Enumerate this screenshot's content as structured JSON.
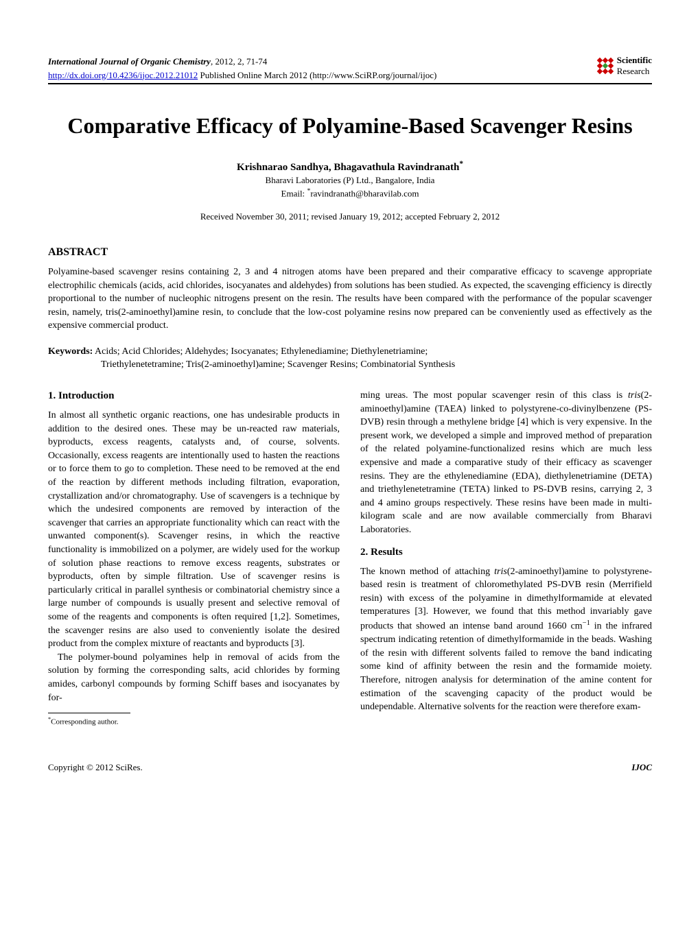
{
  "header": {
    "journal_name": "International Journal of Organic Chemistry",
    "journal_details": ", 2012, 2, 71-74",
    "doi_url": "http://dx.doi.org/10.4236/ijoc.2012.21012",
    "pub_info": " Published Online March 2012 (http://www.SciRP.org/journal/ijoc)",
    "logo": {
      "line1": "Scientific",
      "line2": "Research",
      "red": "#cc0000",
      "green": "#339933"
    }
  },
  "title": "Comparative Efficacy of Polyamine-Based Scavenger Resins",
  "authors": "Krishnarao Sandhya, Bhagavathula Ravindranath",
  "author_sup": "*",
  "affiliation": "Bharavi Laboratories (P) Ltd., Bangalore, India",
  "email_label": "Email: ",
  "email_sup": "*",
  "email": "ravindranath@bharavilab.com",
  "dates": "Received November 30, 2011; revised January 19, 2012; accepted February 2, 2012",
  "abstract": {
    "heading": "ABSTRACT",
    "text": "Polyamine-based scavenger resins containing 2, 3 and 4 nitrogen atoms have been prepared and their comparative efficacy to scavenge appropriate electrophilic chemicals (acids, acid chlorides, isocyanates and aldehydes) from solutions has been studied. As expected, the scavenging efficiency is directly proportional to the number of nucleophic nitrogens present on the resin. The results have been compared with the performance of the popular scavenger resin, namely, tris(2-aminoethyl)amine resin, to conclude that the low-cost polyamine resins now prepared can be conveniently used as effectively as the expensive commercial product."
  },
  "keywords": {
    "label": "Keywords:",
    "line1": " Acids; Acid Chlorides; Aldehydes; Isocyanates; Ethylenediamine; Diethylenetriamine;",
    "line2": "Triethylenetetramine; Tris(2-aminoethyl)amine; Scavenger Resins; Combinatorial Synthesis"
  },
  "sections": {
    "intro_heading": "1. Introduction",
    "intro_p1": "In almost all synthetic organic reactions, one has undesirable products in addition to the desired ones. These may be un-reacted raw materials, byproducts, excess reagents, catalysts and, of course, solvents. Occasionally, excess reagents are intentionally used to hasten the reactions or to force them to go to completion. These need to be removed at the end of the reaction by different methods including filtration, evaporation, crystallization and/or chromatography. Use of scavengers is a technique by which the undesired components are removed by interaction of the scavenger that carries an appropriate functionality which can react with the unwanted component(s). Scavenger resins, in which the reactive functionality is immobilized on a polymer, are widely used for the workup of solution phase reactions to remove excess reagents, substrates or byproducts, often by simple filtration. Use of scavenger resins is particularly critical in parallel synthesis or combinatorial chemistry since a large number of compounds is usually present and selective removal of some of the reagents and components is often required [1,2]. Sometimes, the scavenger resins are also used to conveniently isolate the desired product from the complex mixture of reactants and byproducts [3].",
    "intro_p2": "The polymer-bound polyamines help in removal of acids from the solution by forming the corresponding salts, acid chlorides by forming amides, carbonyl compounds by forming Schiff bases and isocyanates by for-",
    "col2_p1_a": "ming ureas. The most popular scavenger resin of this class is ",
    "col2_p1_tris": "tris",
    "col2_p1_b": "(2-aminoethyl)amine (TAEA) linked to polystyrene-co-divinylbenzene (PS-DVB) resin through a methylene bridge [4] which is very expensive. In the present work, we developed a simple and improved method of preparation of the related polyamine-functionalized resins which are much less expensive and made a comparative study of their efficacy as scavenger resins. They are the ethylenediamine (EDA), diethylenetriamine (DETA) and triethylenetetramine (TETA) linked to PS-DVB resins, carrying 2, 3 and 4 amino groups respectively. These resins have been made in multi-kilogram scale and are now available commercially from Bharavi Laboratories.",
    "results_heading": "2. Results",
    "results_p1_a": "The known method of attaching ",
    "results_p1_tris": "tris",
    "results_p1_b": "(2-aminoethyl)amine to polystyrene-based resin is treatment of chloromethylated PS-DVB resin (Merrifield resin) with excess of the polyamine in dimethylformamide at elevated temperatures [3]. However, we found that this method invariably gave products that showed an intense band around 1660 cm",
    "results_p1_sup": "−1",
    "results_p1_c": " in the infrared spectrum indicating retention of dimethylformamide in the beads. Washing of the resin with different solvents failed to remove the band indicating some kind of affinity between the resin and the formamide moiety. Therefore, nitrogen analysis for determination of the amine content for estimation of the scavenging capacity of the product would be undependable. Alternative solvents for the reaction were therefore exam-"
  },
  "footnote": {
    "sup": "*",
    "text": "Corresponding author."
  },
  "footer": {
    "left": "Copyright © 2012 SciRes.",
    "right": "IJOC"
  },
  "colors": {
    "text": "#000000",
    "link": "#0000cc",
    "background": "#ffffff"
  }
}
